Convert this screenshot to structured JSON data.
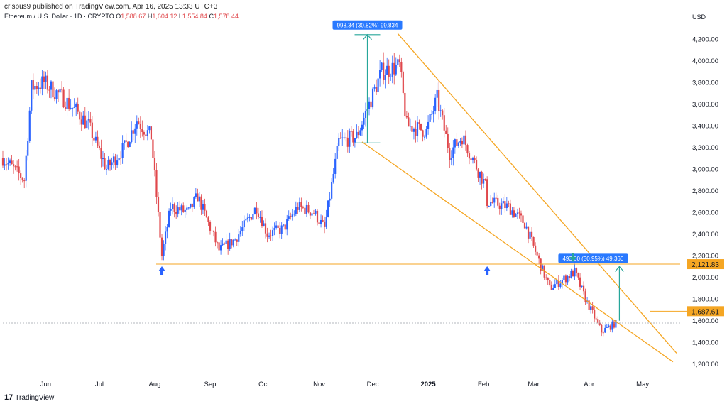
{
  "header": {
    "published": "crispus9 published on TradingView.com, Apr 16, 2025 13:33 UTC+3",
    "symbol": "Ethereum / U.S. Dollar · 1D · CRYPTO",
    "ohlc": {
      "o_label": "O",
      "o": "1,588.67",
      "h_label": "H",
      "h": "1,604.12",
      "l_label": "L",
      "l": "1,554.84",
      "c_label": "C",
      "c": "1,578.44"
    }
  },
  "footer": {
    "brand": "TradingView",
    "logo_glyph": "17"
  },
  "colors": {
    "up": "#2962ff",
    "down": "#e0484c",
    "wedge": "#f5a623",
    "support": "#f5a623",
    "measure": "#26a69a",
    "price_tag": "#f5a623",
    "measure_label": "#2979ff",
    "arrow_up": "#2962ff",
    "arrow_down": "#26a69a"
  },
  "chart_data": {
    "type": "candlestick",
    "currency_label": "USD",
    "ylim": [
      1100,
      4350
    ],
    "y_ticks": [
      "4,200.00",
      "4,000.00",
      "3,800.00",
      "3,600.00",
      "3,400.00",
      "3,200.00",
      "3,000.00",
      "2,800.00",
      "2,600.00",
      "2,400.00",
      "2,200.00",
      "2,000.00",
      "1,800.00",
      "1,600.00",
      "1,400.00",
      "1,200.00"
    ],
    "x_ticks": [
      {
        "label": "Jun",
        "date": "2024-06-01"
      },
      {
        "label": "Jul",
        "date": "2024-07-01"
      },
      {
        "label": "Aug",
        "date": "2024-08-01"
      },
      {
        "label": "Sep",
        "date": "2024-09-01"
      },
      {
        "label": "Oct",
        "date": "2024-10-01"
      },
      {
        "label": "Nov",
        "date": "2024-11-01"
      },
      {
        "label": "Dec",
        "date": "2024-12-01"
      },
      {
        "label": "2025",
        "date": "2025-01-01",
        "bold": true
      },
      {
        "label": "Feb",
        "date": "2025-02-01"
      },
      {
        "label": "Mar",
        "date": "2025-03-01"
      },
      {
        "label": "Apr",
        "date": "2025-04-01"
      },
      {
        "label": "May",
        "date": "2025-05-01"
      }
    ],
    "x_start": "2024-05-08",
    "x_end": "2025-05-22",
    "price_anchors": [
      [
        "2024-05-08",
        3100
      ],
      [
        "2024-05-20",
        2900
      ],
      [
        "2024-05-24",
        3750
      ],
      [
        "2024-05-31",
        3800
      ],
      [
        "2024-06-11",
        3650
      ],
      [
        "2024-06-20",
        3500
      ],
      [
        "2024-06-25",
        3400
      ],
      [
        "2024-07-05",
        3000
      ],
      [
        "2024-07-15",
        3200
      ],
      [
        "2024-07-22",
        3450
      ],
      [
        "2024-07-30",
        3300
      ],
      [
        "2024-08-05",
        2200
      ],
      [
        "2024-08-10",
        2650
      ],
      [
        "2024-08-20",
        2600
      ],
      [
        "2024-08-25",
        2750
      ],
      [
        "2024-09-06",
        2250
      ],
      [
        "2024-09-15",
        2350
      ],
      [
        "2024-09-27",
        2650
      ],
      [
        "2024-10-03",
        2400
      ],
      [
        "2024-10-12",
        2450
      ],
      [
        "2024-10-20",
        2650
      ],
      [
        "2024-10-29",
        2600
      ],
      [
        "2024-11-04",
        2450
      ],
      [
        "2024-11-12",
        3250
      ],
      [
        "2024-11-22",
        3300
      ],
      [
        "2024-12-06",
        3900
      ],
      [
        "2024-12-16",
        3950
      ],
      [
        "2024-12-20",
        3400
      ],
      [
        "2024-12-31",
        3350
      ],
      [
        "2025-01-06",
        3650
      ],
      [
        "2025-01-13",
        3150
      ],
      [
        "2025-01-20",
        3300
      ],
      [
        "2025-02-02",
        2850
      ],
      [
        "2025-02-03",
        2700
      ],
      [
        "2025-02-15",
        2650
      ],
      [
        "2025-02-24",
        2500
      ],
      [
        "2025-03-04",
        2150
      ],
      [
        "2025-03-10",
        1900
      ],
      [
        "2025-03-24",
        2050
      ],
      [
        "2025-03-30",
        1800
      ],
      [
        "2025-04-08",
        1500
      ],
      [
        "2025-04-16",
        1578
      ]
    ],
    "annotations": {
      "support_line": {
        "price": 2121.83,
        "label": "2,121.83"
      },
      "current_price_line": {
        "price": 1578.44
      },
      "target_line": {
        "price": 1687.61,
        "label": "1,687.61"
      },
      "wedge_upper": [
        [
          "2024-12-15",
          4250
        ],
        [
          "2025-05-20",
          1300
        ]
      ],
      "wedge_lower": [
        [
          "2024-11-25",
          3250
        ],
        [
          "2025-05-18",
          1220
        ]
      ],
      "measure_left": {
        "date": "2024-11-28",
        "from": 3240,
        "to": 4240,
        "label": "998.34 (30.82%) 99,834"
      },
      "measure_right": {
        "date": "2025-04-18",
        "from": 1600,
        "to": 2100,
        "label": "493.60 (30.95%) 49,360"
      },
      "arrows_up": [
        "2024-08-05",
        "2025-02-03"
      ],
      "arrow_down": {
        "date": "2025-03-23",
        "price": 2121.83
      }
    }
  }
}
